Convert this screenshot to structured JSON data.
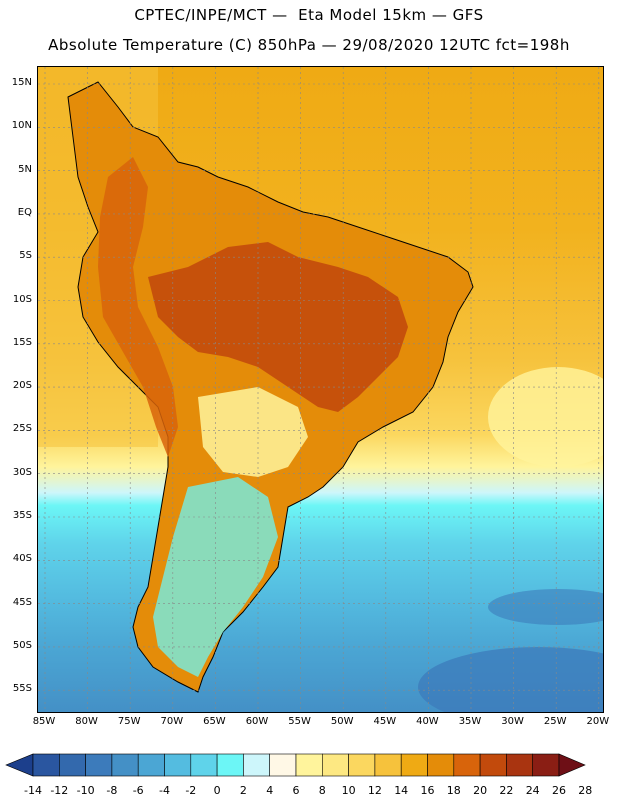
{
  "header": {
    "line1": "CPTEC/INPE/MCT —  Eta Model 15km — GFS",
    "line2": "Absolute Temperature (C) 850hPa — 29/08/2020 12UTC fct=198h"
  },
  "map": {
    "lat_labels": [
      "15N",
      "10N",
      "5N",
      "EQ",
      "5S",
      "10S",
      "15S",
      "20S",
      "25S",
      "30S",
      "35S",
      "40S",
      "45S",
      "50S",
      "55S"
    ],
    "lon_labels": [
      "85W",
      "80W",
      "75W",
      "70W",
      "65W",
      "60W",
      "55W",
      "50W",
      "45W",
      "40W",
      "35W",
      "30W",
      "25W",
      "20W"
    ],
    "region": "South America"
  },
  "legend": {
    "labels": [
      "-14",
      "-12",
      "-10",
      "-8",
      "-6",
      "-4",
      "-2",
      "0",
      "2",
      "4",
      "6",
      "8",
      "10",
      "12",
      "14",
      "16",
      "18",
      "20",
      "22",
      "24",
      "26",
      "28"
    ],
    "colors": [
      "#1c3f8c",
      "#2a56a0",
      "#3369ad",
      "#3c7bbb",
      "#4490c6",
      "#4ba6d4",
      "#54bce0",
      "#5fd3ea",
      "#6cf6f6",
      "#cdf6fb",
      "#fff8e6",
      "#fff49c",
      "#fde882",
      "#fbd75f",
      "#f6c23c",
      "#efaa14",
      "#e48c09",
      "#d8640b",
      "#c24a0c",
      "#a93410",
      "#8a1e14",
      "#6e0f16"
    ]
  }
}
